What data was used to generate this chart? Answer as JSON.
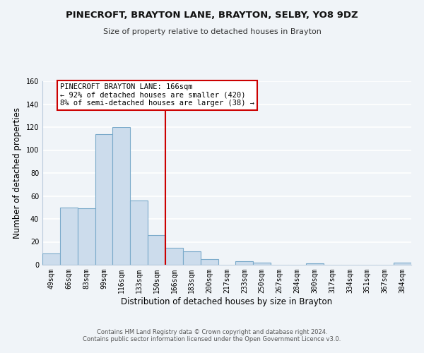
{
  "title1": "PINECROFT, BRAYTON LANE, BRAYTON, SELBY, YO8 9DZ",
  "title2": "Size of property relative to detached houses in Brayton",
  "xlabel": "Distribution of detached houses by size in Brayton",
  "ylabel": "Number of detached properties",
  "footer1": "Contains HM Land Registry data © Crown copyright and database right 2024.",
  "footer2": "Contains public sector information licensed under the Open Government Licence v3.0.",
  "bar_labels": [
    "49sqm",
    "66sqm",
    "83sqm",
    "99sqm",
    "116sqm",
    "133sqm",
    "150sqm",
    "166sqm",
    "183sqm",
    "200sqm",
    "217sqm",
    "233sqm",
    "250sqm",
    "267sqm",
    "284sqm",
    "300sqm",
    "317sqm",
    "334sqm",
    "351sqm",
    "367sqm",
    "384sqm"
  ],
  "bar_values": [
    10,
    50,
    49,
    114,
    120,
    56,
    26,
    15,
    12,
    5,
    0,
    3,
    2,
    0,
    0,
    1,
    0,
    0,
    0,
    0,
    2
  ],
  "bar_color": "#ccdcec",
  "bar_edge_color": "#7aaaca",
  "vline_color": "#cc0000",
  "annotation_title": "PINECROFT BRAYTON LANE: 166sqm",
  "annotation_line1": "← 92% of detached houses are smaller (420)",
  "annotation_line2": "8% of semi-detached houses are larger (38) →",
  "annotation_box_edge": "#cc0000",
  "ylim": [
    0,
    160
  ],
  "yticks": [
    0,
    20,
    40,
    60,
    80,
    100,
    120,
    140,
    160
  ],
  "background_color": "#f0f4f8",
  "grid_color": "#dde5ef"
}
